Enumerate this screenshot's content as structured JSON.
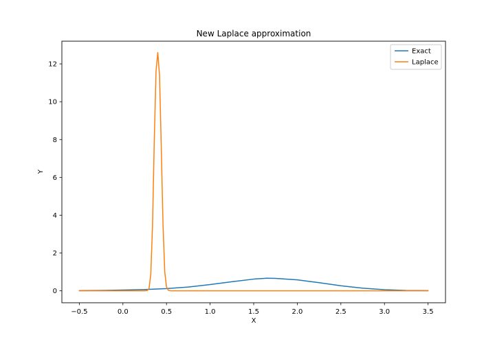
{
  "chart_data": {
    "type": "line",
    "title": "New Laplace approximation",
    "xlabel": "X",
    "ylabel": "Y",
    "xlim": [
      -0.7,
      3.7
    ],
    "ylim": [
      -0.63,
      13.2
    ],
    "xticks": [
      -0.5,
      0.0,
      0.5,
      1.0,
      1.5,
      2.0,
      2.5,
      3.0,
      3.5
    ],
    "xtick_labels": [
      "−0.5",
      "0.0",
      "0.5",
      "1.0",
      "1.5",
      "2.0",
      "2.5",
      "3.0",
      "3.5"
    ],
    "yticks": [
      0,
      2,
      4,
      6,
      8,
      10,
      12
    ],
    "ytick_labels": [
      "0",
      "2",
      "4",
      "6",
      "8",
      "10",
      "12"
    ],
    "grid": false,
    "legend_position": "top-right",
    "series": [
      {
        "name": "Exact",
        "color": "#1f77b4",
        "x": [
          -0.5,
          -0.25,
          0.0,
          0.25,
          0.5,
          0.75,
          1.0,
          1.25,
          1.5,
          1.65,
          1.75,
          2.0,
          2.25,
          2.5,
          2.75,
          3.0,
          3.25,
          3.5
        ],
        "y": [
          0.01,
          0.02,
          0.04,
          0.07,
          0.12,
          0.2,
          0.33,
          0.48,
          0.62,
          0.67,
          0.66,
          0.58,
          0.43,
          0.27,
          0.14,
          0.06,
          0.02,
          0.01
        ]
      },
      {
        "name": "Laplace",
        "color": "#ff7f0e",
        "x": [
          -0.5,
          0.0,
          0.2,
          0.25,
          0.28,
          0.3,
          0.32,
          0.34,
          0.36,
          0.38,
          0.4,
          0.42,
          0.44,
          0.46,
          0.48,
          0.5,
          0.52,
          0.55,
          1.0,
          2.0,
          3.0,
          3.5
        ],
        "y": [
          0.0,
          0.0,
          0.0,
          0.0,
          0.02,
          0.13,
          0.88,
          3.5,
          8.0,
          11.6,
          12.6,
          11.4,
          7.6,
          3.5,
          1.0,
          0.2,
          0.03,
          0.0,
          0.0,
          0.0,
          0.0,
          0.0
        ]
      }
    ]
  }
}
